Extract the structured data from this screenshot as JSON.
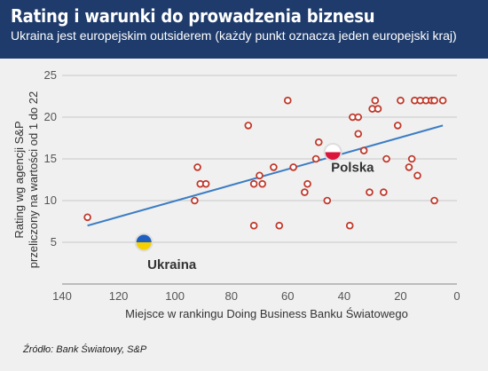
{
  "header": {
    "title": "Rating i warunki do prowadzenia biznesu",
    "subtitle": "Ukraina jest europejskim outsiderem (każdy punkt oznacza jeden europejski kraj)"
  },
  "source": "Źródło: Bank Światowy, S&P",
  "colors": {
    "header_bg": "#1e3b6b",
    "point_stroke": "#c0392b",
    "trend_line": "#3b7dc4",
    "grid": "#c8c8c8"
  },
  "chart_data": {
    "type": "scatter",
    "xlabel": "Miejsce w rankingu Doing Business Banku Światowego",
    "ylabel": [
      "Rating wg agencji S&P",
      "przeliczony na wartości od 1 do 22"
    ],
    "xlim": [
      140,
      0
    ],
    "ylim": [
      0,
      25
    ],
    "x_ticks": [
      140,
      120,
      100,
      80,
      60,
      40,
      20,
      0
    ],
    "y_ticks": [
      5,
      10,
      15,
      20,
      25
    ],
    "grid": "horizontal",
    "points": [
      {
        "x": 131,
        "y": 8
      },
      {
        "x": 92,
        "y": 14
      },
      {
        "x": 91,
        "y": 12
      },
      {
        "x": 89,
        "y": 12
      },
      {
        "x": 93,
        "y": 10
      },
      {
        "x": 74,
        "y": 19
      },
      {
        "x": 72,
        "y": 12
      },
      {
        "x": 70,
        "y": 13
      },
      {
        "x": 69,
        "y": 12
      },
      {
        "x": 72,
        "y": 7
      },
      {
        "x": 65,
        "y": 14
      },
      {
        "x": 63,
        "y": 7
      },
      {
        "x": 60,
        "y": 22
      },
      {
        "x": 58,
        "y": 14
      },
      {
        "x": 54,
        "y": 11
      },
      {
        "x": 53,
        "y": 12
      },
      {
        "x": 50,
        "y": 15
      },
      {
        "x": 49,
        "y": 17
      },
      {
        "x": 46,
        "y": 10
      },
      {
        "x": 38,
        "y": 7
      },
      {
        "x": 37,
        "y": 20
      },
      {
        "x": 35,
        "y": 20
      },
      {
        "x": 35,
        "y": 18
      },
      {
        "x": 33,
        "y": 16
      },
      {
        "x": 31,
        "y": 11
      },
      {
        "x": 30,
        "y": 21
      },
      {
        "x": 29,
        "y": 22
      },
      {
        "x": 28,
        "y": 21
      },
      {
        "x": 26,
        "y": 11
      },
      {
        "x": 25,
        "y": 15
      },
      {
        "x": 21,
        "y": 19
      },
      {
        "x": 20,
        "y": 22
      },
      {
        "x": 17,
        "y": 14
      },
      {
        "x": 16,
        "y": 15
      },
      {
        "x": 15,
        "y": 22
      },
      {
        "x": 14,
        "y": 13
      },
      {
        "x": 13,
        "y": 22
      },
      {
        "x": 11,
        "y": 22
      },
      {
        "x": 9,
        "y": 22
      },
      {
        "x": 8,
        "y": 10
      },
      {
        "x": 8,
        "y": 22
      },
      {
        "x": 5,
        "y": 22
      }
    ],
    "trend": {
      "x": [
        131,
        5
      ],
      "y": [
        7,
        19
      ]
    },
    "annotations": [
      {
        "label": "Polska",
        "x": 44,
        "y": 15.8,
        "flag": "poland-flag-icon",
        "flag_colors": [
          "#ffffff",
          "#dc143c"
        ]
      },
      {
        "label": "Ukraina",
        "x": 111,
        "y": 5,
        "flag": "ukraine-flag-icon",
        "flag_colors": [
          "#1f5fbf",
          "#f6d000"
        ]
      }
    ]
  }
}
